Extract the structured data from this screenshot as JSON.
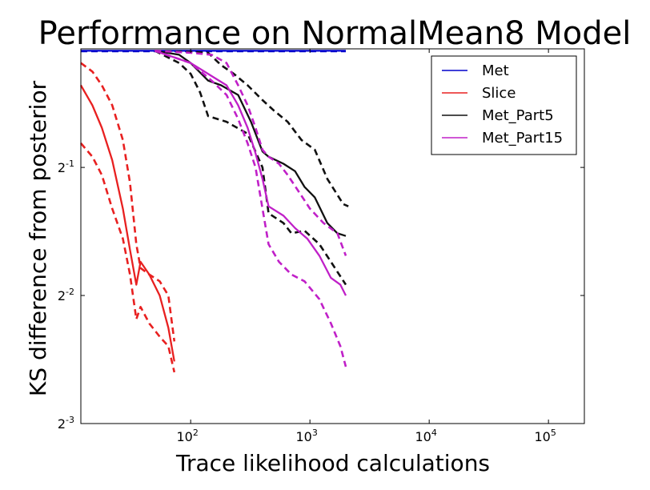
{
  "chart_data": {
    "type": "line",
    "title": "Performance on NormalMean8 Model",
    "xlabel": "Trace likelihood calculations",
    "ylabel": "KS difference from posterior",
    "x_scale": "log10",
    "y_scale": "log2",
    "xlim": [
      12,
      200000
    ],
    "ylim": [
      0.125,
      0.95
    ],
    "x_ticks": [
      {
        "value": 100,
        "base": "10",
        "exp": "2"
      },
      {
        "value": 1000,
        "base": "10",
        "exp": "3"
      },
      {
        "value": 10000,
        "base": "10",
        "exp": "4"
      },
      {
        "value": 100000,
        "base": "10",
        "exp": "5"
      }
    ],
    "y_ticks": [
      {
        "value": 0.125,
        "base": "2",
        "exp": "-3"
      },
      {
        "value": 0.25,
        "base": "2",
        "exp": "-2"
      },
      {
        "value": 0.5,
        "base": "2",
        "exp": "-1"
      }
    ],
    "legend_position": "top-right",
    "grid": false,
    "legend": [
      {
        "name": "Met",
        "color": "#0000cc"
      },
      {
        "name": "Slice",
        "color": "#e82020"
      },
      {
        "name": "Met_Part5",
        "color": "#111111"
      },
      {
        "name": "Met_Part15",
        "color": "#c020c8"
      }
    ],
    "series": [
      {
        "name": "Met",
        "role": "mean",
        "color": "#0000cc",
        "style": "solid",
        "x": [
          12,
          50,
          100,
          500,
          2000
        ],
        "y": [
          0.94,
          0.94,
          0.94,
          0.94,
          0.94
        ]
      },
      {
        "name": "Met",
        "role": "bound",
        "color": "#0000cc",
        "style": "dashed",
        "x": [
          12,
          100,
          500,
          2000
        ],
        "y": [
          0.938,
          0.938,
          0.938,
          0.938
        ]
      },
      {
        "name": "Slice",
        "role": "mean",
        "color": "#e82020",
        "style": "solid",
        "x": [
          12,
          15,
          18,
          22,
          27,
          31,
          35,
          38,
          45,
          55,
          65,
          73
        ],
        "y": [
          0.78,
          0.7,
          0.62,
          0.52,
          0.4,
          0.32,
          0.265,
          0.3,
          0.28,
          0.25,
          0.21,
          0.175
        ]
      },
      {
        "name": "Slice",
        "role": "upper",
        "color": "#e82020",
        "style": "dashed",
        "x": [
          12,
          15,
          18,
          22,
          27,
          31,
          35,
          38,
          45,
          55,
          65,
          73
        ],
        "y": [
          0.88,
          0.84,
          0.78,
          0.7,
          0.58,
          0.46,
          0.33,
          0.29,
          0.28,
          0.27,
          0.25,
          0.195
        ]
      },
      {
        "name": "Slice",
        "role": "lower",
        "color": "#e82020",
        "style": "dashed",
        "x": [
          12,
          15,
          18,
          22,
          27,
          31,
          35,
          38,
          45,
          55,
          65,
          73
        ],
        "y": [
          0.57,
          0.53,
          0.48,
          0.4,
          0.34,
          0.28,
          0.22,
          0.235,
          0.215,
          0.2,
          0.19,
          0.165
        ]
      },
      {
        "name": "Met_Part5",
        "role": "mean",
        "color": "#111111",
        "style": "solid",
        "x": [
          50,
          80,
          100,
          140,
          180,
          250,
          320,
          400,
          450,
          600,
          750,
          900,
          1100,
          1400,
          1700,
          2000
        ],
        "y": [
          0.94,
          0.92,
          0.88,
          0.8,
          0.78,
          0.74,
          0.64,
          0.545,
          0.53,
          0.51,
          0.49,
          0.45,
          0.425,
          0.37,
          0.35,
          0.345
        ]
      },
      {
        "name": "Met_Part5",
        "role": "upper",
        "color": "#111111",
        "style": "dashed",
        "x": [
          50,
          100,
          140,
          180,
          230,
          300,
          400,
          500,
          650,
          850,
          1100,
          1400,
          1900,
          2100
        ],
        "y": [
          0.94,
          0.935,
          0.93,
          0.87,
          0.83,
          0.78,
          0.72,
          0.68,
          0.64,
          0.58,
          0.55,
          0.47,
          0.41,
          0.405
        ]
      },
      {
        "name": "Met_Part5",
        "role": "lower",
        "color": "#111111",
        "style": "dashed",
        "x": [
          50,
          80,
          100,
          120,
          140,
          200,
          300,
          400,
          450,
          600,
          700,
          900,
          1200,
          1500,
          2000
        ],
        "y": [
          0.94,
          0.88,
          0.83,
          0.75,
          0.66,
          0.64,
          0.6,
          0.5,
          0.39,
          0.37,
          0.35,
          0.355,
          0.33,
          0.3,
          0.265
        ]
      },
      {
        "name": "Met_Part15",
        "role": "mean",
        "color": "#c020c8",
        "style": "solid",
        "x": [
          50,
          100,
          150,
          200,
          250,
          300,
          350,
          400,
          450,
          600,
          750,
          950,
          1200,
          1500,
          1800,
          2000
        ],
        "y": [
          0.94,
          0.88,
          0.82,
          0.78,
          0.7,
          0.62,
          0.54,
          0.47,
          0.405,
          0.385,
          0.36,
          0.34,
          0.31,
          0.275,
          0.265,
          0.25
        ]
      },
      {
        "name": "Met_Part15",
        "role": "upper",
        "color": "#c020c8",
        "style": "dashed",
        "x": [
          50,
          100,
          150,
          200,
          250,
          300,
          350,
          400,
          450,
          550,
          650,
          800,
          1000,
          1300,
          1700,
          2000
        ],
        "y": [
          0.94,
          0.93,
          0.92,
          0.88,
          0.78,
          0.7,
          0.62,
          0.55,
          0.53,
          0.51,
          0.48,
          0.44,
          0.4,
          0.37,
          0.35,
          0.31
        ]
      },
      {
        "name": "Met_Part15",
        "role": "lower",
        "color": "#c020c8",
        "style": "dashed",
        "x": [
          50,
          100,
          150,
          200,
          250,
          300,
          350,
          400,
          450,
          550,
          700,
          900,
          1200,
          1500,
          1800,
          2000
        ],
        "y": [
          0.94,
          0.88,
          0.8,
          0.74,
          0.65,
          0.57,
          0.5,
          0.4,
          0.33,
          0.3,
          0.28,
          0.27,
          0.245,
          0.215,
          0.19,
          0.17
        ]
      }
    ]
  }
}
